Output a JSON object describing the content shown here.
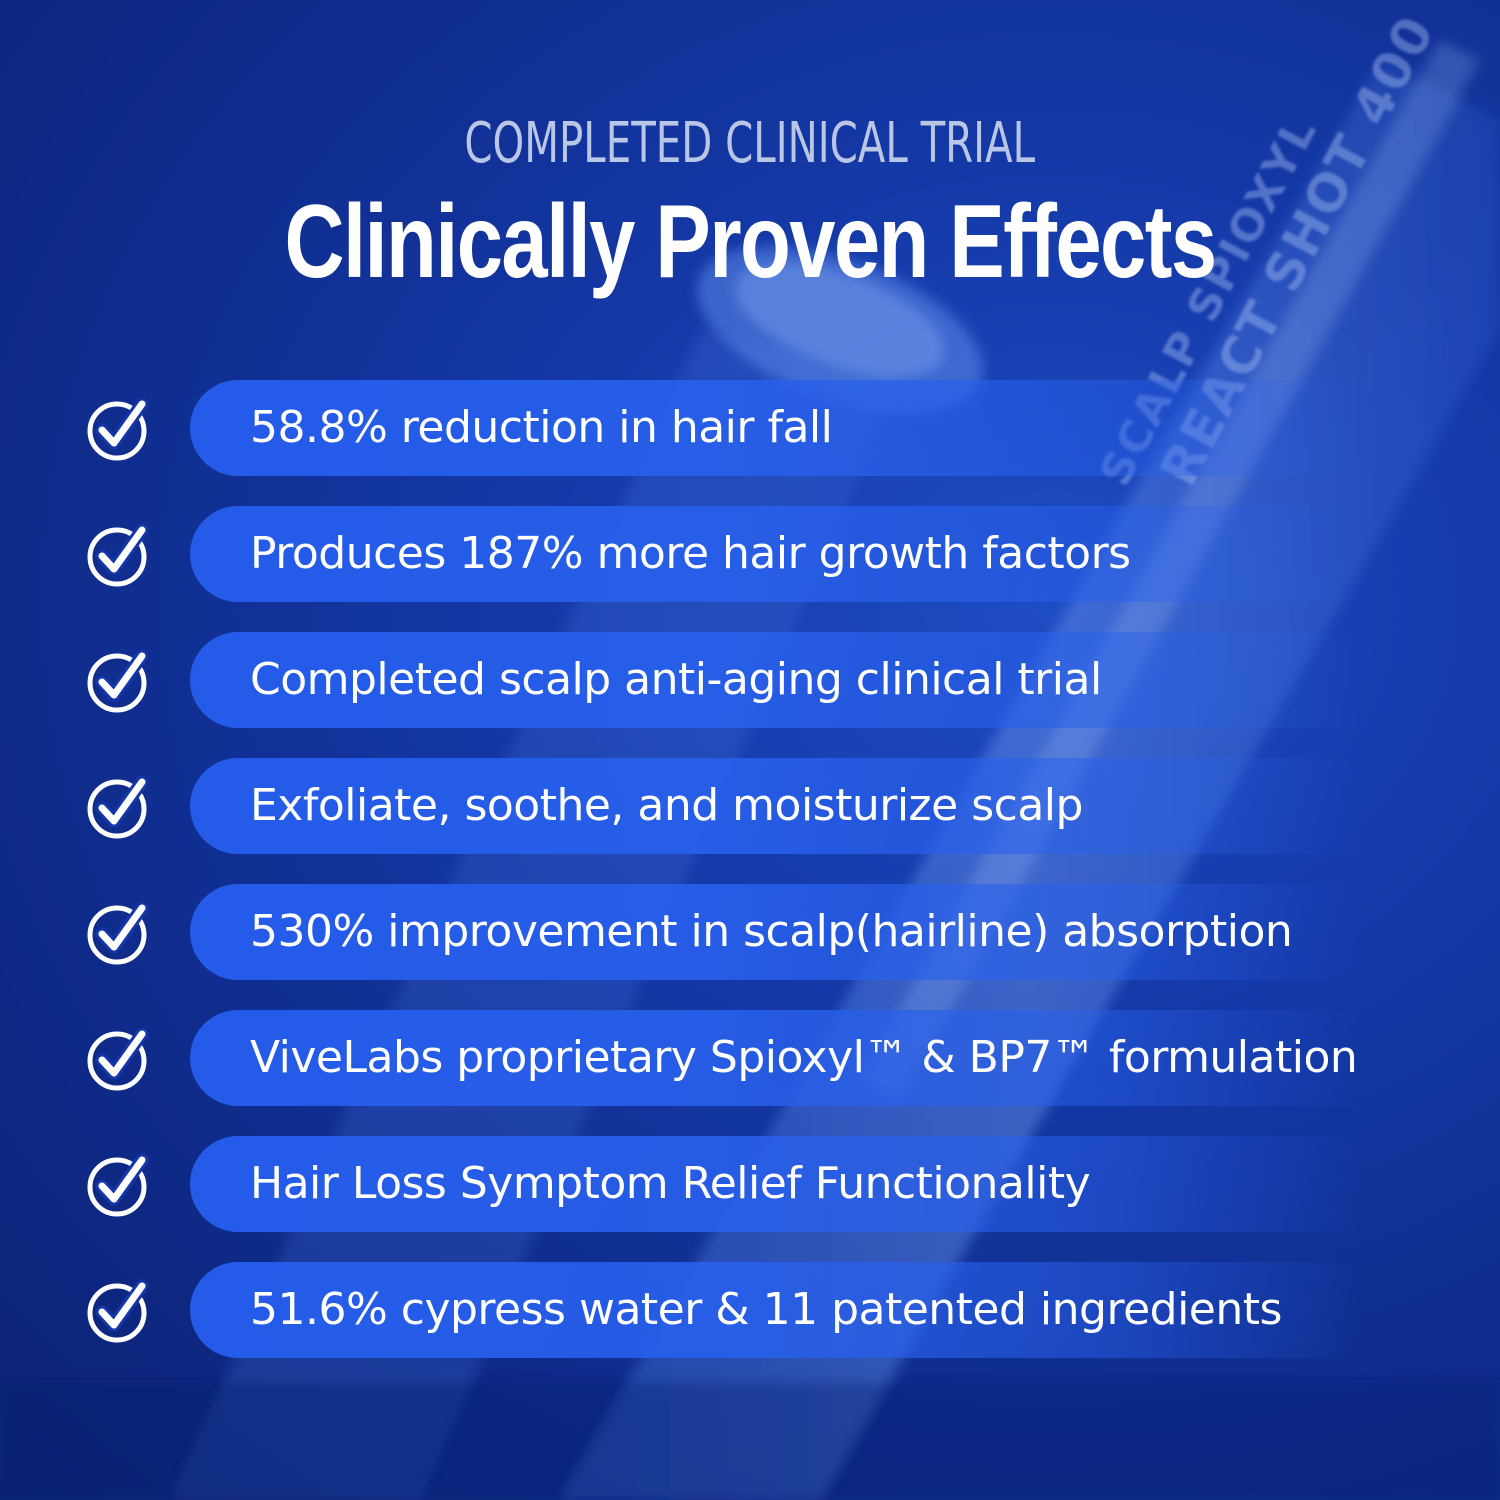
{
  "header": {
    "eyebrow": "COMPLETED CLINICAL TRIAL",
    "title": "Clinically Proven Effects"
  },
  "background": {
    "product_line1": "SCALP SPIOXYL",
    "product_line2": "REACT SHOT 400",
    "colors": {
      "base": "#0f2b8a",
      "pill": "#245ceb"
    }
  },
  "items": [
    {
      "label": "58.8% reduction in hair fall",
      "icon": "check-circle-icon"
    },
    {
      "label": "Produces 187% more hair growth factors",
      "icon": "check-circle-icon"
    },
    {
      "label": "Completed scalp anti-aging clinical trial",
      "icon": "check-circle-icon"
    },
    {
      "label": "Exfoliate, soothe, and moisturize scalp",
      "icon": "check-circle-icon"
    },
    {
      "label": "530% improvement in scalp(hairline) absorption",
      "icon": "check-circle-icon"
    },
    {
      "label": "ViveLabs proprietary Spioxyl™ & BP7™ formulation",
      "icon": "check-circle-icon"
    },
    {
      "label": "Hair Loss Symptom Relief Functionality",
      "icon": "check-circle-icon"
    },
    {
      "label": "51.6% cypress water & 11 patented ingredients",
      "icon": "check-circle-icon"
    }
  ]
}
